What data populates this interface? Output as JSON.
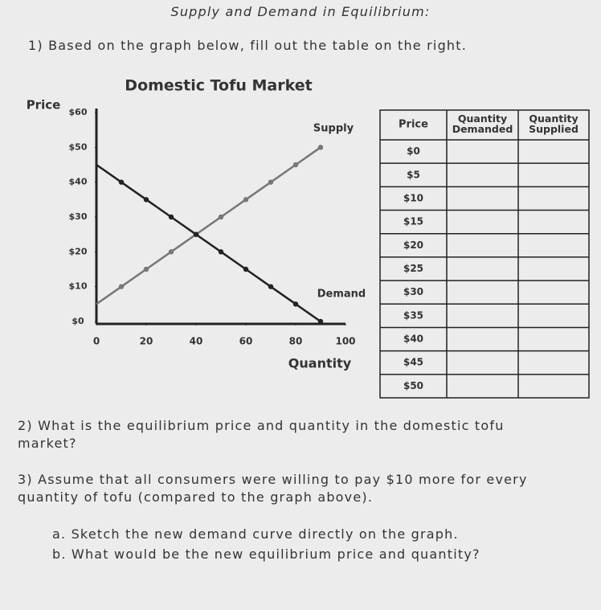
{
  "header": {
    "title": "Supply and Demand in Equilibrium:"
  },
  "question1": "1) Based on the graph below, fill out the table on the right.",
  "chart_data": {
    "type": "line",
    "title": "Domestic Tofu Market",
    "y_label": "Price",
    "x_label": "Quantity",
    "x": [
      0,
      10,
      20,
      30,
      40,
      50,
      60,
      70,
      80,
      90
    ],
    "series": [
      {
        "name": "Supply",
        "color": "#777777",
        "values": [
          5,
          10,
          15,
          20,
          25,
          30,
          35,
          40,
          45,
          50
        ]
      },
      {
        "name": "Demand",
        "color": "#222222",
        "values": [
          45,
          40,
          35,
          30,
          25,
          20,
          15,
          10,
          5,
          0
        ]
      }
    ],
    "xlim": [
      0,
      100
    ],
    "xticks": [
      0,
      20,
      40,
      60,
      80,
      100
    ],
    "ylim": [
      0,
      60
    ],
    "yticks": [
      {
        "value": 0,
        "label": "$0"
      },
      {
        "value": 10,
        "label": "$10"
      },
      {
        "value": 20,
        "label": "$20"
      },
      {
        "value": 30,
        "label": "$30"
      },
      {
        "value": 40,
        "label": "$40"
      },
      {
        "value": 50,
        "label": "$50"
      },
      {
        "value": 60,
        "label": "$60"
      }
    ]
  },
  "table": {
    "header": [
      "Price",
      "Quantity Demanded",
      "Quantity Supplied"
    ],
    "prices": [
      "$0",
      "$5",
      "$10",
      "$15",
      "$20",
      "$25",
      "$30",
      "$35",
      "$40",
      "$45",
      "$50"
    ]
  },
  "question2": "2) What is the equilibrium price and quantity in the domestic tofu market?",
  "question3": {
    "text": "3) Assume that all consumers were willing to pay $10 more for every quantity of tofu (compared to the graph above).",
    "a": "a. Sketch the new demand curve directly on the graph.",
    "b": "b. What would be the new equilibrium price and quantity?"
  }
}
